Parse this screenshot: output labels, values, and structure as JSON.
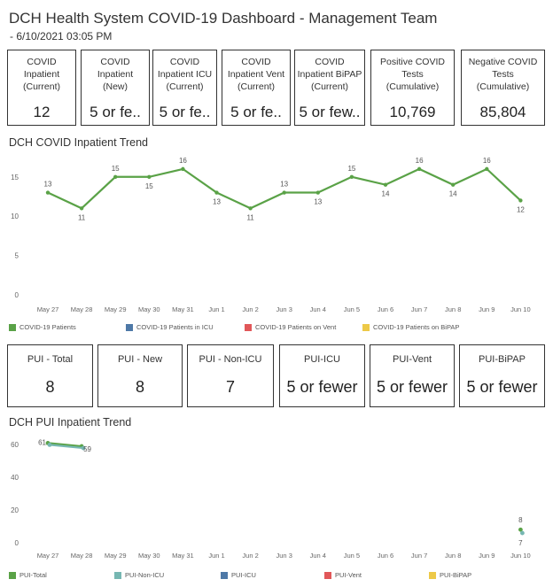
{
  "header": {
    "title": "DCH Health System COVID-19 Dashboard - Management Team",
    "subtitle": "- 6/10/2021 03:05 PM"
  },
  "kpis_top": [
    {
      "label": "COVID\nInpatient\n(Current)",
      "value": "12"
    },
    {
      "label": "COVID\nInpatient\n(New)",
      "value": "5 or fe.."
    },
    {
      "label": "COVID\nInpatient ICU\n(Current)",
      "value": "5 or fe.."
    },
    {
      "label": "COVID\nInpatient Vent\n(Current)",
      "value": "5 or fe.."
    },
    {
      "label": "COVID\nInpatient BiPAP\n(Current)",
      "value": "5 or few.."
    },
    {
      "label": "Positive COVID\nTests\n(Cumulative)",
      "value": "10,769"
    },
    {
      "label": "Negative COVID\nTests\n(Cumulative)",
      "value": "85,804"
    }
  ],
  "kpis_pui": [
    {
      "label": "PUI - Total",
      "value": "8"
    },
    {
      "label": "PUI - New",
      "value": "8"
    },
    {
      "label": "PUI - Non-ICU",
      "value": "7"
    },
    {
      "label": "PUI-ICU",
      "value": "5 or fewer"
    },
    {
      "label": "PUI-Vent",
      "value": "5 or fewer"
    },
    {
      "label": "PUI-BiPAP",
      "value": "5 or fewer"
    }
  ],
  "sections": {
    "covid_trend_title": "DCH COVID Inpatient Trend",
    "pui_trend_title": "DCH PUI Inpatient Trend"
  },
  "colors": {
    "green": "#5aa247",
    "teal": "#76b7b2",
    "blue": "#4e79a7",
    "red": "#e15759",
    "yellow": "#edc948"
  },
  "chart_data": [
    {
      "type": "line",
      "title": "DCH COVID Inpatient Trend",
      "categories": [
        "May 27",
        "May 28",
        "May 29",
        "May 30",
        "May 31",
        "Jun 1",
        "Jun 2",
        "Jun 3",
        "Jun 4",
        "Jun 5",
        "Jun 6",
        "Jun 7",
        "Jun 8",
        "Jun 9",
        "Jun 10"
      ],
      "ylim": [
        0,
        17
      ],
      "yticks": [
        0,
        5,
        10,
        15
      ],
      "legend": [
        "COVID-19 Patients",
        "COVID-19 Patients in ICU",
        "COVID-19 Patients on Vent",
        "COVID-19 Patients on BiPAP"
      ],
      "legend_colors": [
        "#5aa247",
        "#4e79a7",
        "#e15759",
        "#edc948"
      ],
      "series": [
        {
          "name": "COVID-19 Patients",
          "color": "#5aa247",
          "values": [
            13,
            11,
            15,
            15,
            16,
            13,
            11,
            13,
            13,
            15,
            14,
            16,
            14,
            16,
            12
          ]
        }
      ]
    },
    {
      "type": "line",
      "title": "DCH PUI Inpatient Trend",
      "categories": [
        "May 27",
        "May 28",
        "May 29",
        "May 30",
        "May 31",
        "Jun 1",
        "Jun 2",
        "Jun 3",
        "Jun 4",
        "Jun 5",
        "Jun 6",
        "Jun 7",
        "Jun 8",
        "Jun 9",
        "Jun 10"
      ],
      "ylim": [
        0,
        65
      ],
      "yticks": [
        0,
        20,
        40,
        60
      ],
      "legend": [
        "PUI-Total",
        "PUI-Non-ICU",
        "PUI-ICU",
        "PUI-Vent",
        "PUI-BiPAP"
      ],
      "legend_colors": [
        "#5aa247",
        "#76b7b2",
        "#4e79a7",
        "#e15759",
        "#edc948"
      ],
      "series": [
        {
          "name": "PUI-Total",
          "color": "#5aa247",
          "values": [
            61,
            59,
            null,
            null,
            null,
            null,
            null,
            null,
            null,
            null,
            null,
            null,
            null,
            null,
            8
          ]
        },
        {
          "name": "PUI-Non-ICU",
          "color": "#76b7b2",
          "values": [
            61,
            59,
            null,
            null,
            null,
            null,
            null,
            null,
            null,
            null,
            null,
            null,
            null,
            null,
            7
          ]
        }
      ]
    }
  ]
}
